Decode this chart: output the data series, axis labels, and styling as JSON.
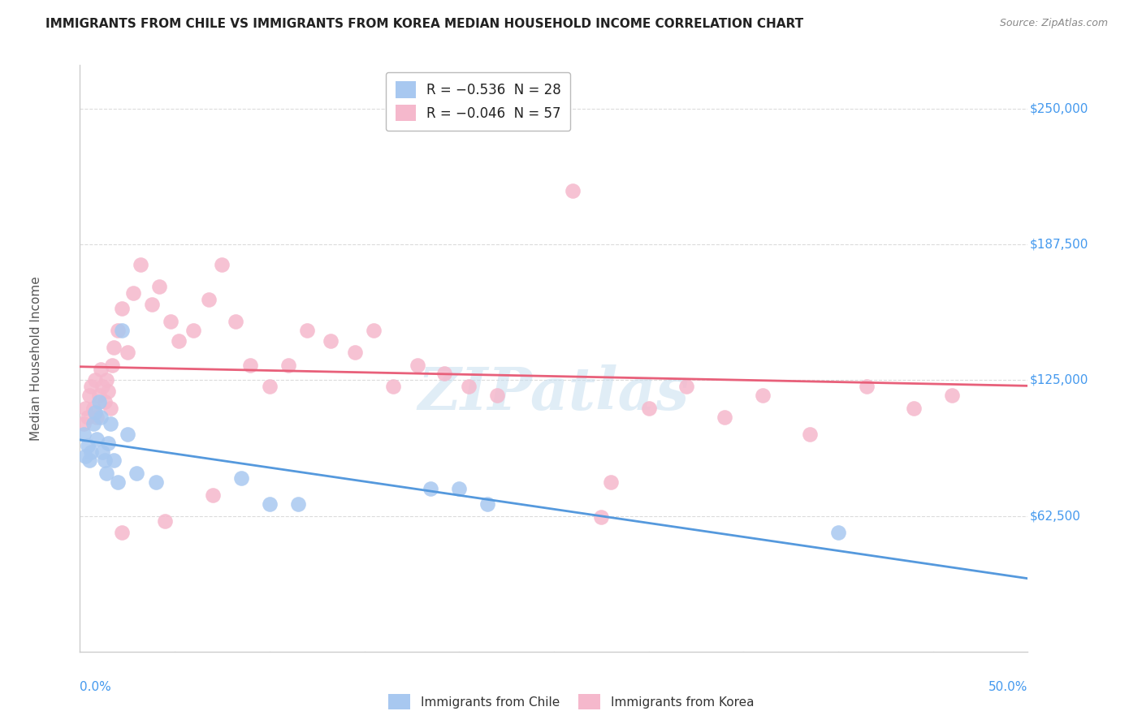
{
  "title": "IMMIGRANTS FROM CHILE VS IMMIGRANTS FROM KOREA MEDIAN HOUSEHOLD INCOME CORRELATION CHART",
  "source": "Source: ZipAtlas.com",
  "ylabel": "Median Household Income",
  "xlim": [
    0.0,
    0.5
  ],
  "ylim": [
    0,
    270000
  ],
  "yticks": [
    62500,
    125000,
    187500,
    250000
  ],
  "ytick_labels": [
    "$62,500",
    "$125,000",
    "$187,500",
    "$250,000"
  ],
  "watermark": "ZIPatlas",
  "legend_r1": "R = −0.536  N = 28",
  "legend_r2": "R = −0.046  N = 57",
  "legend_r_color": "#3355cc",
  "legend_n_color": "#3355cc",
  "chile_scatter_color": "#a8c8f0",
  "korea_scatter_color": "#f5b8cc",
  "chile_line_color": "#5599dd",
  "korea_line_color": "#e8607a",
  "background_color": "#ffffff",
  "grid_color": "#cccccc",
  "watermark_color": "#c8dff0",
  "ytick_color": "#4499ee",
  "xtick_color": "#4499ee",
  "chile_x": [
    0.002,
    0.003,
    0.004,
    0.005,
    0.006,
    0.007,
    0.008,
    0.009,
    0.01,
    0.011,
    0.012,
    0.013,
    0.014,
    0.015,
    0.016,
    0.018,
    0.02,
    0.022,
    0.025,
    0.03,
    0.04,
    0.085,
    0.1,
    0.115,
    0.185,
    0.2,
    0.215,
    0.4
  ],
  "chile_y": [
    100000,
    90000,
    95000,
    88000,
    92000,
    105000,
    110000,
    98000,
    115000,
    108000,
    92000,
    88000,
    82000,
    96000,
    105000,
    88000,
    78000,
    148000,
    100000,
    82000,
    78000,
    80000,
    68000,
    68000,
    75000,
    75000,
    68000,
    55000
  ],
  "korea_x": [
    0.002,
    0.003,
    0.004,
    0.005,
    0.006,
    0.007,
    0.008,
    0.009,
    0.01,
    0.011,
    0.012,
    0.013,
    0.014,
    0.015,
    0.016,
    0.017,
    0.018,
    0.02,
    0.022,
    0.025,
    0.028,
    0.032,
    0.038,
    0.042,
    0.048,
    0.052,
    0.06,
    0.068,
    0.075,
    0.082,
    0.09,
    0.1,
    0.11,
    0.12,
    0.132,
    0.145,
    0.155,
    0.165,
    0.178,
    0.192,
    0.205,
    0.22,
    0.24,
    0.26,
    0.28,
    0.3,
    0.32,
    0.34,
    0.36,
    0.385,
    0.415,
    0.44,
    0.46,
    0.275,
    0.07,
    0.045,
    0.022
  ],
  "korea_y": [
    105000,
    112000,
    108000,
    118000,
    122000,
    112000,
    125000,
    108000,
    118000,
    130000,
    122000,
    115000,
    125000,
    120000,
    112000,
    132000,
    140000,
    148000,
    158000,
    138000,
    165000,
    178000,
    160000,
    168000,
    152000,
    143000,
    148000,
    162000,
    178000,
    152000,
    132000,
    122000,
    132000,
    148000,
    143000,
    138000,
    148000,
    122000,
    132000,
    128000,
    122000,
    118000,
    248000,
    212000,
    78000,
    112000,
    122000,
    108000,
    118000,
    100000,
    122000,
    112000,
    118000,
    62000,
    72000,
    60000,
    55000
  ]
}
